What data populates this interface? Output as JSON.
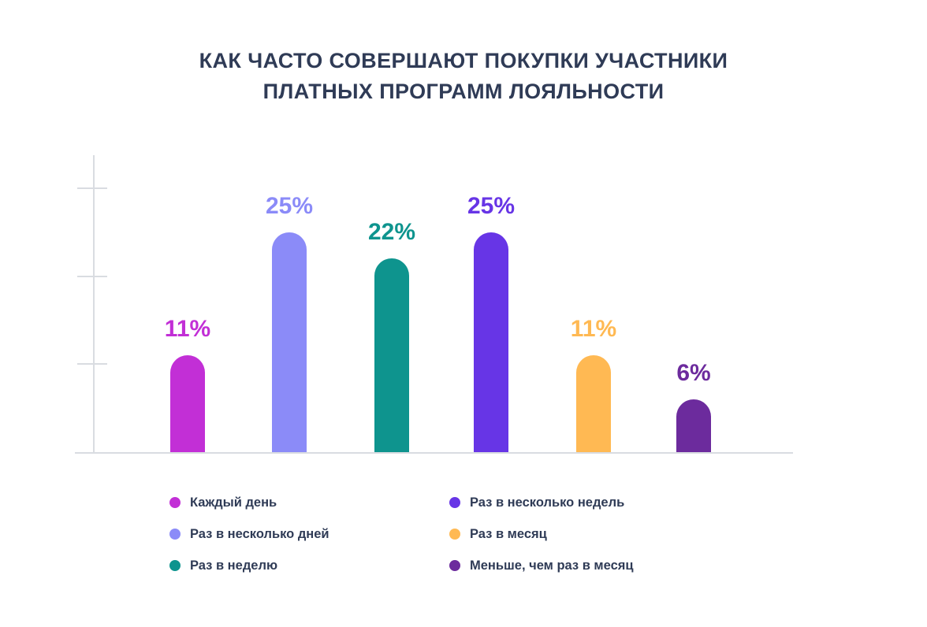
{
  "title": {
    "line1": "КАК ЧАСТО СОВЕРШАЮТ ПОКУПКИ УЧАСТНИКИ",
    "line2": "ПЛАТНЫХ ПРОГРАММ ЛОЯЛЬНОСТИ"
  },
  "chart_data": {
    "type": "bar",
    "title": "КАК ЧАСТО СОВЕРШАЮТ ПОКУПКИ УЧАСТНИКИ ПЛАТНЫХ ПРОГРАММ ЛОЯЛЬНОСТИ",
    "categories": [
      "Каждый день",
      "Раз в несколько дней",
      "Раз в неделю",
      "Раз в несколько недель",
      "Раз в месяц",
      "Меньше, чем раз в месяц"
    ],
    "values": [
      11,
      25,
      22,
      25,
      11,
      6
    ],
    "value_labels": [
      "11%",
      "25%",
      "22%",
      "25%",
      "11%",
      "6%"
    ],
    "colors": [
      "#C22FD6",
      "#8B8BF8",
      "#0E948E",
      "#6735E6",
      "#FFB953",
      "#6C2B9D"
    ],
    "unit": "%",
    "xlabel": "",
    "ylabel": "",
    "ylim": [
      0,
      33
    ],
    "yticks": [
      10,
      20,
      30
    ],
    "ytick_labels_visible": false,
    "grid": false,
    "legend_position": "bottom-two-columns",
    "legend_columns": [
      [
        0,
        1,
        2
      ],
      [
        3,
        4,
        5
      ]
    ]
  },
  "style": {
    "text_color": "#2F3B56",
    "axis_color": "#D9DCE1",
    "background": "#FFFFFF"
  }
}
